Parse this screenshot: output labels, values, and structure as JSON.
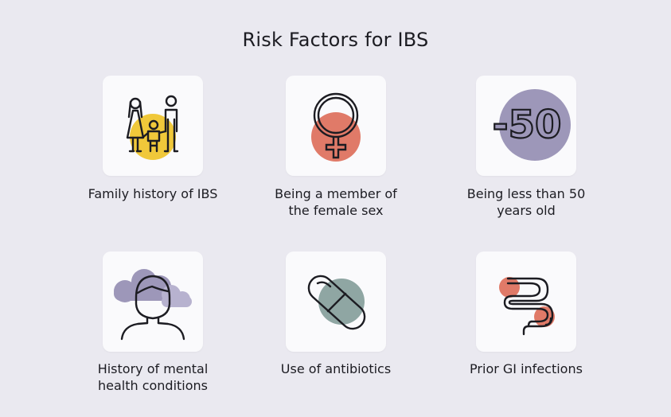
{
  "title": "Risk Factors for IBS",
  "colors": {
    "background": "#eae9f0",
    "card": "#fafafc",
    "yellow": "#f0c83a",
    "coral": "#e07a68",
    "purple": "#9d97b9",
    "lavender": "#b7b2cf",
    "teal": "#8fa6a3",
    "stroke": "#1c1c22"
  },
  "items": [
    {
      "icon": "family-icon",
      "label_lines": [
        "Family history of IBS"
      ]
    },
    {
      "icon": "female-symbol-icon",
      "label_lines": [
        "Being a member of",
        "the female sex"
      ]
    },
    {
      "icon": "minus-50-icon",
      "icon_text": "-50",
      "label_lines": [
        "Being less than 50",
        "years old"
      ]
    },
    {
      "icon": "person-cloud-icon",
      "label_lines": [
        "History of mental",
        "health conditions"
      ]
    },
    {
      "icon": "pill-icon",
      "label_lines": [
        "Use of antibiotics"
      ]
    },
    {
      "icon": "intestine-icon",
      "label_lines": [
        "Prior GI infections"
      ]
    }
  ]
}
